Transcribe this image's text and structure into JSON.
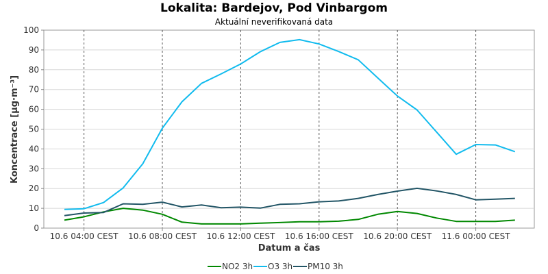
{
  "chart_data": {
    "type": "line",
    "title": "Lokalita: Bardejov, Pod Vinbargom",
    "subtitle": "Aktuální neverifikovaná data",
    "xlabel": "Datum a čas",
    "ylabel": "Koncentrace [µg·m⁻³]",
    "ylim": [
      0,
      100
    ],
    "yticks": [
      0,
      10,
      20,
      30,
      40,
      50,
      60,
      70,
      80,
      90,
      100
    ],
    "xticks": [
      "10.6 04:00 CEST",
      "10.6 08:00 CEST",
      "10.6 12:00 CEST",
      "10.6 16:00 CEST",
      "10.6 20:00 CEST",
      "11.6 00:00 CEST"
    ],
    "x": [
      "10.6 03:00",
      "10.6 04:00",
      "10.6 05:00",
      "10.6 06:00",
      "10.6 07:00",
      "10.6 08:00",
      "10.6 09:00",
      "10.6 10:00",
      "10.6 11:00",
      "10.6 12:00",
      "10.6 13:00",
      "10.6 14:00",
      "10.6 15:00",
      "10.6 16:00",
      "10.6 17:00",
      "10.6 18:00",
      "10.6 19:00",
      "10.6 20:00",
      "10.6 21:00",
      "10.6 22:00",
      "10.6 23:00",
      "11.6 00:00",
      "11.6 01:00",
      "11.6 02:00"
    ],
    "grid": true,
    "legend_position": "bottom",
    "series": [
      {
        "name": "NO2 3h",
        "color": "#008800",
        "values": [
          4.0,
          5.7,
          8.2,
          10.0,
          9.1,
          7.0,
          3.0,
          2.1,
          2.1,
          2.1,
          2.5,
          2.8,
          3.2,
          3.2,
          3.5,
          4.4,
          7.0,
          8.4,
          7.4,
          5.1,
          3.4,
          3.4,
          3.4,
          4.0
        ]
      },
      {
        "name": "O3 3h",
        "color": "#11bbee",
        "values": [
          9.4,
          9.8,
          12.9,
          20.3,
          32.5,
          50.5,
          63.8,
          73.1,
          77.9,
          82.9,
          89.1,
          93.8,
          95.2,
          93.0,
          89.2,
          85.0,
          75.8,
          66.7,
          59.7,
          48.5,
          37.3,
          42.2,
          42.0,
          38.6
        ]
      },
      {
        "name": "PM10 3h",
        "color": "#225566",
        "values": [
          6.3,
          7.6,
          7.9,
          12.3,
          12.0,
          13.1,
          10.7,
          11.7,
          10.3,
          10.6,
          10.1,
          12.0,
          12.3,
          13.3,
          13.7,
          15.0,
          17.0,
          18.7,
          20.1,
          18.8,
          17.0,
          14.3,
          14.6,
          15.0
        ]
      }
    ]
  }
}
